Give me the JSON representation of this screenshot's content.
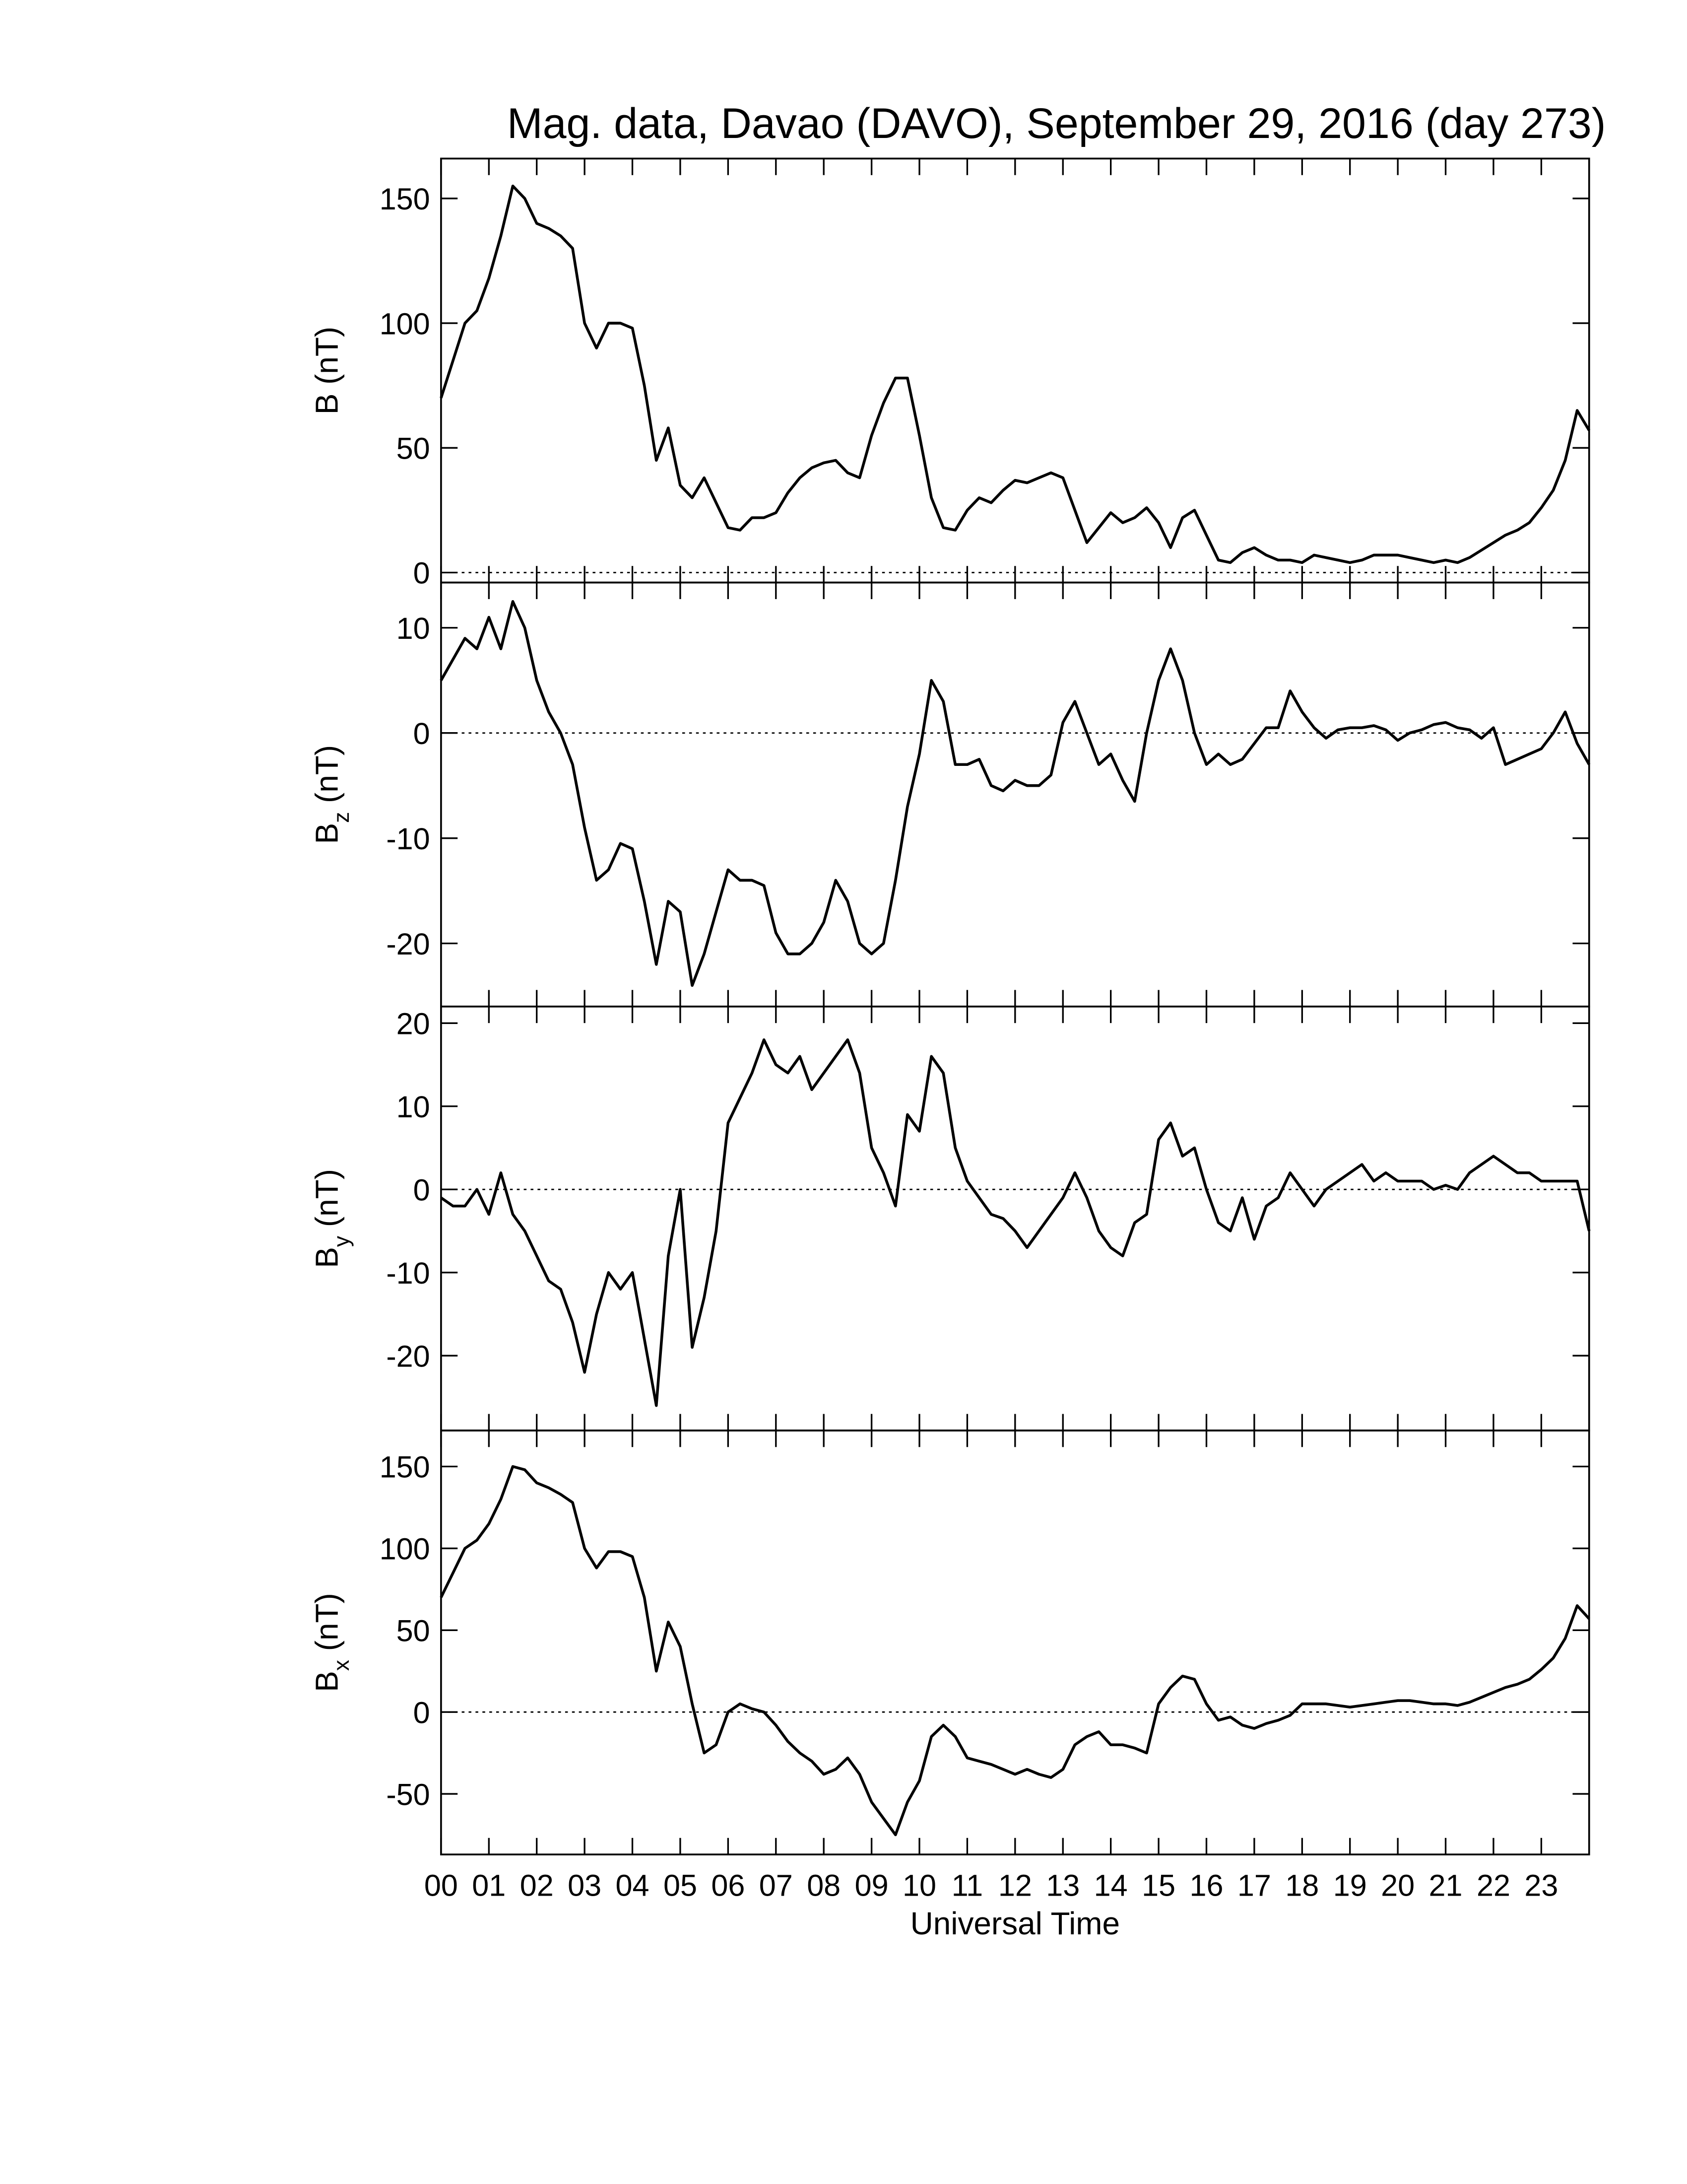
{
  "chart_data": [
    {
      "type": "line",
      "title": "Mag. data, Davao (DAVO), September 29, 2016 (day 273)",
      "ylabel": "B (nT)",
      "xlim": [
        0,
        24
      ],
      "xticks": [
        0,
        1,
        2,
        3,
        4,
        5,
        6,
        7,
        8,
        9,
        10,
        11,
        12,
        13,
        14,
        15,
        16,
        17,
        18,
        19,
        20,
        21,
        22,
        23
      ],
      "ylim": [
        -4,
        166
      ],
      "yticks": [
        0,
        50,
        100,
        150
      ],
      "zero_line": true,
      "color": "#000000",
      "x": [
        0,
        0.25,
        0.5,
        0.75,
        1,
        1.25,
        1.5,
        1.75,
        2,
        2.25,
        2.5,
        2.75,
        3,
        3.25,
        3.5,
        3.75,
        4,
        4.25,
        4.5,
        4.75,
        5,
        5.25,
        5.5,
        5.75,
        6,
        6.25,
        6.5,
        6.75,
        7,
        7.25,
        7.5,
        7.75,
        8,
        8.25,
        8.5,
        8.75,
        9,
        9.25,
        9.5,
        9.75,
        10,
        10.25,
        10.5,
        10.75,
        11,
        11.25,
        11.5,
        11.75,
        12,
        12.25,
        12.5,
        12.75,
        13,
        13.25,
        13.5,
        13.75,
        14,
        14.25,
        14.5,
        14.75,
        15,
        15.25,
        15.5,
        15.75,
        16,
        16.25,
        16.5,
        16.75,
        17,
        17.25,
        17.5,
        17.75,
        18,
        18.25,
        18.5,
        18.75,
        19,
        19.25,
        19.5,
        19.75,
        20,
        20.25,
        20.5,
        20.75,
        21,
        21.25,
        21.5,
        21.75,
        22,
        22.25,
        22.5,
        22.75,
        23,
        23.25,
        23.5,
        23.75,
        24
      ],
      "values": [
        70,
        85,
        100,
        105,
        118,
        135,
        155,
        150,
        140,
        138,
        135,
        130,
        100,
        90,
        100,
        100,
        98,
        75,
        45,
        58,
        35,
        30,
        38,
        28,
        18,
        17,
        22,
        22,
        24,
        32,
        38,
        42,
        44,
        45,
        40,
        38,
        55,
        68,
        78,
        78,
        55,
        30,
        18,
        17,
        25,
        30,
        28,
        33,
        37,
        36,
        38,
        40,
        38,
        25,
        12,
        18,
        24,
        20,
        22,
        26,
        20,
        10,
        22,
        25,
        15,
        5,
        4,
        8,
        10,
        7,
        5,
        5,
        4,
        7,
        6,
        5,
        4,
        5,
        7,
        7,
        7,
        6,
        5,
        4,
        5,
        4,
        6,
        9,
        12,
        15,
        17,
        20,
        26,
        33,
        45,
        65,
        57
      ]
    },
    {
      "type": "line",
      "ylabel": "Bz (nT)",
      "xlim": [
        0,
        24
      ],
      "xticks": [
        0,
        1,
        2,
        3,
        4,
        5,
        6,
        7,
        8,
        9,
        10,
        11,
        12,
        13,
        14,
        15,
        16,
        17,
        18,
        19,
        20,
        21,
        22,
        23
      ],
      "ylim": [
        -26,
        14.3
      ],
      "yticks": [
        -20,
        -10,
        0,
        10
      ],
      "zero_line": true,
      "color": "#000000",
      "x": [
        0,
        0.25,
        0.5,
        0.75,
        1,
        1.25,
        1.5,
        1.75,
        2,
        2.25,
        2.5,
        2.75,
        3,
        3.25,
        3.5,
        3.75,
        4,
        4.25,
        4.5,
        4.75,
        5,
        5.25,
        5.5,
        5.75,
        6,
        6.25,
        6.5,
        6.75,
        7,
        7.25,
        7.5,
        7.75,
        8,
        8.25,
        8.5,
        8.75,
        9,
        9.25,
        9.5,
        9.75,
        10,
        10.25,
        10.5,
        10.75,
        11,
        11.25,
        11.5,
        11.75,
        12,
        12.25,
        12.5,
        12.75,
        13,
        13.25,
        13.5,
        13.75,
        14,
        14.25,
        14.5,
        14.75,
        15,
        15.25,
        15.5,
        15.75,
        16,
        16.25,
        16.5,
        16.75,
        17,
        17.25,
        17.5,
        17.75,
        18,
        18.25,
        18.5,
        18.75,
        19,
        19.25,
        19.5,
        19.75,
        20,
        20.25,
        20.5,
        20.75,
        21,
        21.25,
        21.5,
        21.75,
        22,
        22.25,
        22.5,
        22.75,
        23,
        23.25,
        23.5,
        23.75,
        24
      ],
      "values": [
        5,
        7,
        9,
        8,
        11,
        8,
        12.5,
        10,
        5,
        2,
        0,
        -3,
        -9,
        -14,
        -13,
        -10.5,
        -11,
        -16,
        -22,
        -16,
        -17,
        -24,
        -21,
        -17,
        -13,
        -14,
        -14,
        -14.5,
        -19,
        -21,
        -21,
        -20,
        -18,
        -14,
        -16,
        -20,
        -21,
        -20,
        -14,
        -7,
        -2,
        5,
        3,
        -3,
        -3,
        -2.5,
        -5,
        -5.5,
        -4.5,
        -5,
        -5,
        -4,
        1,
        3,
        0,
        -3,
        -2,
        -4.5,
        -6.5,
        0,
        5,
        8,
        5,
        0,
        -3,
        -2,
        -3,
        -2.5,
        -1,
        0.5,
        0.5,
        4,
        2,
        0.5,
        -0.5,
        0.3,
        0.5,
        0.5,
        0.7,
        0.3,
        -0.7,
        0,
        0.3,
        0.8,
        1,
        0.5,
        0.3,
        -0.5,
        0.5,
        -3,
        -2.5,
        -2,
        -1.5,
        0,
        2,
        -1,
        -3
      ]
    },
    {
      "type": "line",
      "ylabel": "By (nT)",
      "xlim": [
        0,
        24
      ],
      "xticks": [
        0,
        1,
        2,
        3,
        4,
        5,
        6,
        7,
        8,
        9,
        10,
        11,
        12,
        13,
        14,
        15,
        16,
        17,
        18,
        19,
        20,
        21,
        22,
        23
      ],
      "ylim": [
        -29,
        22
      ],
      "yticks": [
        -20,
        -10,
        0,
        10,
        20
      ],
      "zero_line": true,
      "color": "#000000",
      "x": [
        0,
        0.25,
        0.5,
        0.75,
        1,
        1.25,
        1.5,
        1.75,
        2,
        2.25,
        2.5,
        2.75,
        3,
        3.25,
        3.5,
        3.75,
        4,
        4.25,
        4.5,
        4.75,
        5,
        5.25,
        5.5,
        5.75,
        6,
        6.25,
        6.5,
        6.75,
        7,
        7.25,
        7.5,
        7.75,
        8,
        8.25,
        8.5,
        8.75,
        9,
        9.25,
        9.5,
        9.75,
        10,
        10.25,
        10.5,
        10.75,
        11,
        11.25,
        11.5,
        11.75,
        12,
        12.25,
        12.5,
        12.75,
        13,
        13.25,
        13.5,
        13.75,
        14,
        14.25,
        14.5,
        14.75,
        15,
        15.25,
        15.5,
        15.75,
        16,
        16.25,
        16.5,
        16.75,
        17,
        17.25,
        17.5,
        17.75,
        18,
        18.25,
        18.5,
        18.75,
        19,
        19.25,
        19.5,
        19.75,
        20,
        20.25,
        20.5,
        20.75,
        21,
        21.25,
        21.5,
        21.75,
        22,
        22.25,
        22.5,
        22.75,
        23,
        23.25,
        23.5,
        23.75,
        24
      ],
      "values": [
        -1,
        -2,
        -2,
        0,
        -3,
        2,
        -3,
        -5,
        -8,
        -11,
        -12,
        -16,
        -22,
        -15,
        -10,
        -12,
        -10,
        -18,
        -26,
        -8,
        0,
        -19,
        -13,
        -5,
        8,
        11,
        14,
        18,
        15,
        14,
        16,
        12,
        14,
        16,
        18,
        14,
        5,
        2,
        -2,
        9,
        7,
        16,
        14,
        5,
        1,
        -1,
        -3,
        -3.5,
        -5,
        -7,
        -5,
        -3,
        -1,
        2,
        -1,
        -5,
        -7,
        -8,
        -4,
        -3,
        6,
        8,
        4,
        5,
        0,
        -4,
        -5,
        -1,
        -6,
        -2,
        -1,
        2,
        0,
        -2,
        0,
        1,
        2,
        3,
        1,
        2,
        1,
        1,
        1,
        0,
        0.5,
        0,
        2,
        3,
        4,
        3,
        2,
        2,
        1,
        1,
        1,
        1,
        -5
      ]
    },
    {
      "type": "line",
      "ylabel": "Bx (nT)",
      "xlabel": "Universal Time",
      "xlim": [
        0,
        24
      ],
      "xticks": [
        {
          "value": 0,
          "label": "00"
        },
        {
          "value": 1,
          "label": "01"
        },
        {
          "value": 2,
          "label": "02"
        },
        {
          "value": 3,
          "label": "03"
        },
        {
          "value": 4,
          "label": "04"
        },
        {
          "value": 5,
          "label": "05"
        },
        {
          "value": 6,
          "label": "06"
        },
        {
          "value": 7,
          "label": "07"
        },
        {
          "value": 8,
          "label": "08"
        },
        {
          "value": 9,
          "label": "09"
        },
        10,
        11,
        12,
        13,
        14,
        15,
        16,
        17,
        18,
        19,
        20,
        21,
        22,
        23
      ],
      "ylim": [
        -87,
        172
      ],
      "yticks": [
        -50,
        0,
        50,
        100,
        150
      ],
      "zero_line": true,
      "color": "#000000",
      "x": [
        0,
        0.25,
        0.5,
        0.75,
        1,
        1.25,
        1.5,
        1.75,
        2,
        2.25,
        2.5,
        2.75,
        3,
        3.25,
        3.5,
        3.75,
        4,
        4.25,
        4.5,
        4.75,
        5,
        5.25,
        5.5,
        5.75,
        6,
        6.25,
        6.5,
        6.75,
        7,
        7.25,
        7.5,
        7.75,
        8,
        8.25,
        8.5,
        8.75,
        9,
        9.25,
        9.5,
        9.75,
        10,
        10.25,
        10.5,
        10.75,
        11,
        11.25,
        11.5,
        11.75,
        12,
        12.25,
        12.5,
        12.75,
        13,
        13.25,
        13.5,
        13.75,
        14,
        14.25,
        14.5,
        14.75,
        15,
        15.25,
        15.5,
        15.75,
        16,
        16.25,
        16.5,
        16.75,
        17,
        17.25,
        17.5,
        17.75,
        18,
        18.25,
        18.5,
        18.75,
        19,
        19.25,
        19.5,
        19.75,
        20,
        20.25,
        20.5,
        20.75,
        21,
        21.25,
        21.5,
        21.75,
        22,
        22.25,
        22.5,
        22.75,
        23,
        23.25,
        23.5,
        23.75,
        24
      ],
      "values": [
        70,
        85,
        100,
        105,
        115,
        130,
        150,
        148,
        140,
        137,
        133,
        128,
        100,
        88,
        98,
        98,
        95,
        70,
        25,
        55,
        40,
        5,
        -25,
        -20,
        0,
        5,
        2,
        0,
        -8,
        -18,
        -25,
        -30,
        -38,
        -35,
        -28,
        -38,
        -55,
        -65,
        -75,
        -55,
        -42,
        -15,
        -8,
        -15,
        -28,
        -30,
        -32,
        -35,
        -38,
        -35,
        -38,
        -40,
        -35,
        -20,
        -15,
        -12,
        -20,
        -20,
        -22,
        -25,
        5,
        15,
        22,
        20,
        5,
        -5,
        -3,
        -8,
        -10,
        -7,
        -5,
        -2,
        5,
        5,
        5,
        4,
        3,
        4,
        5,
        6,
        7,
        7,
        6,
        5,
        5,
        4,
        6,
        9,
        12,
        15,
        17,
        20,
        26,
        33,
        45,
        65,
        57
      ]
    }
  ]
}
